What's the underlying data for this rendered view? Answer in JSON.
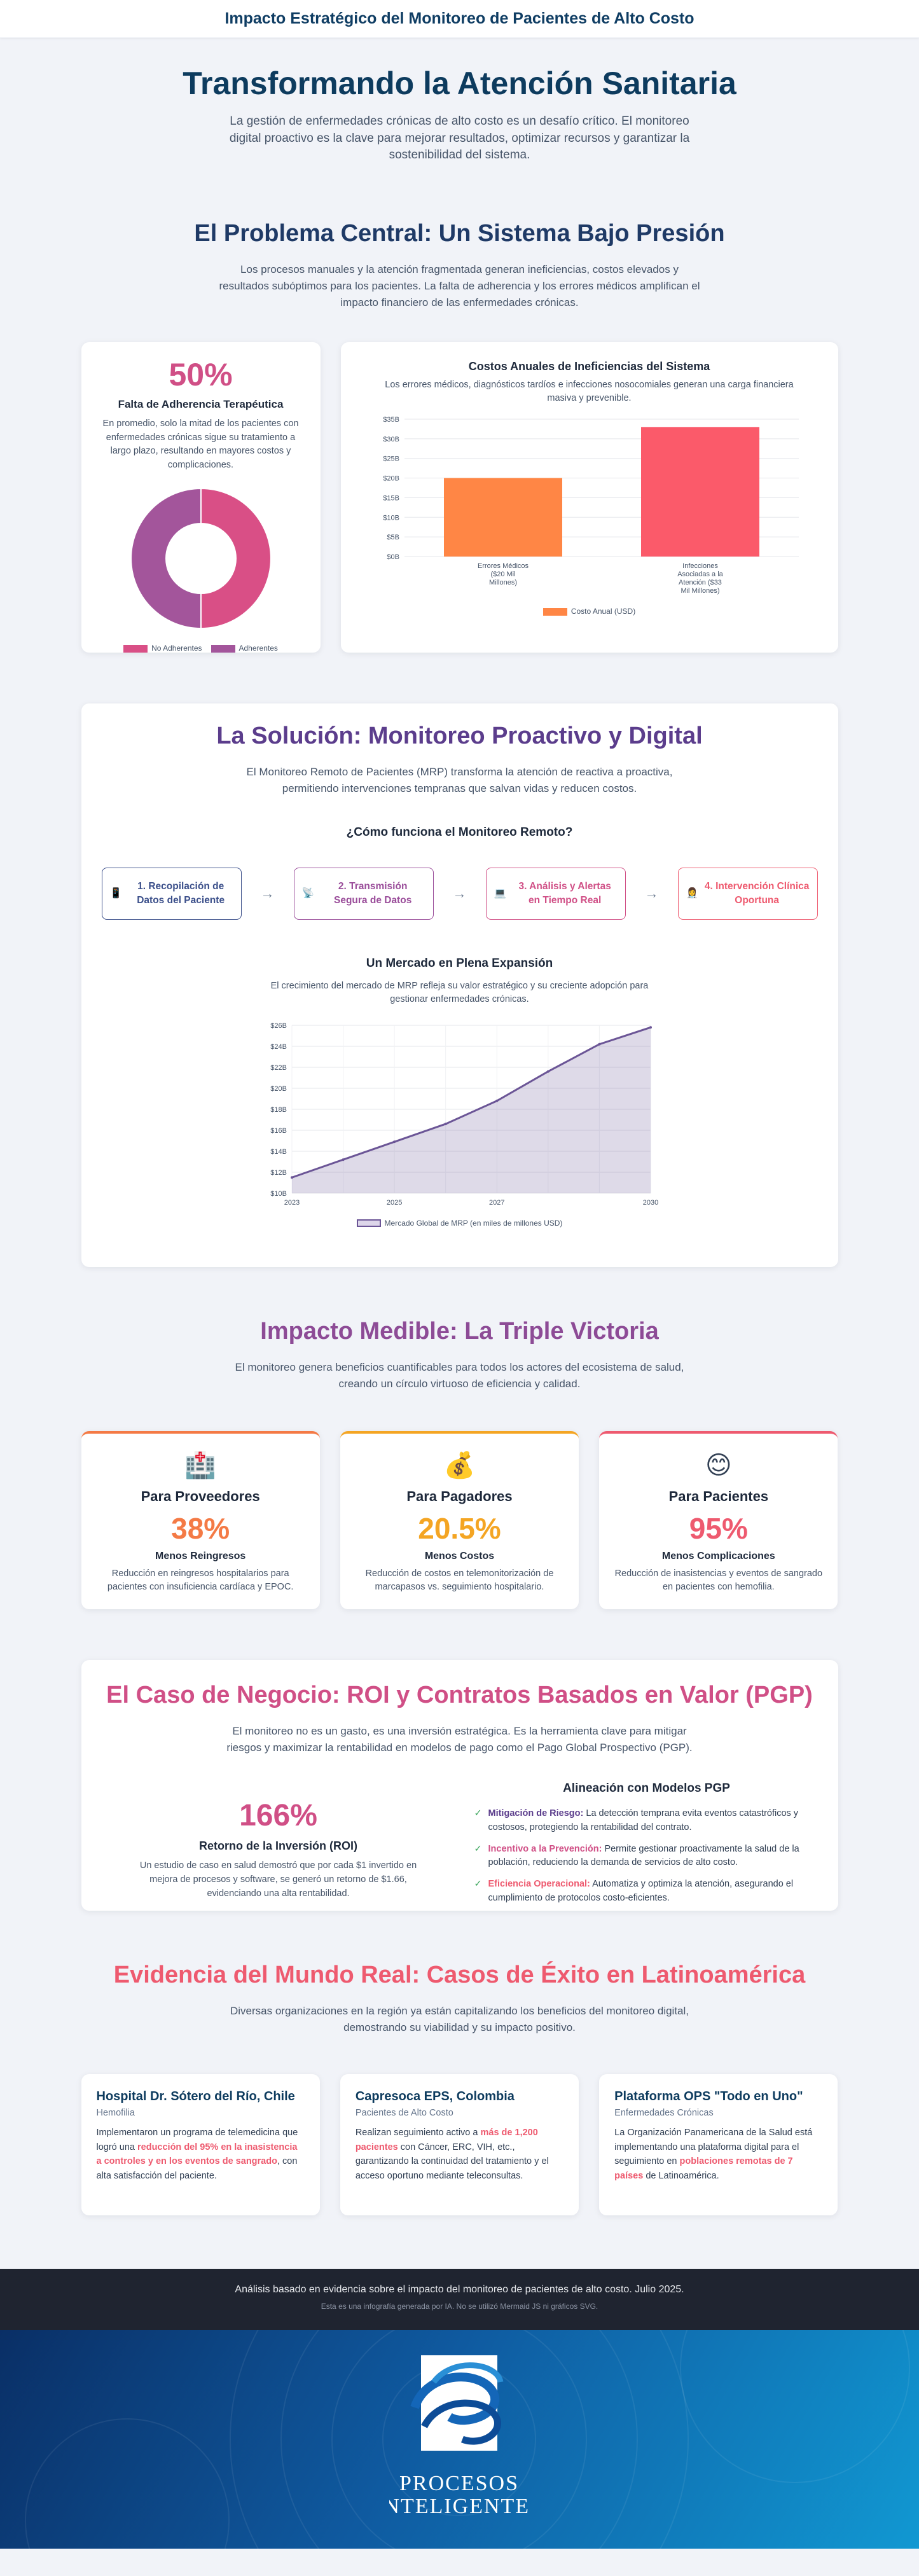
{
  "header": {
    "title": "Impacto Estratégico del Monitoreo de Pacientes de Alto Costo"
  },
  "hero": {
    "title": "Transformando la Atención Sanitaria",
    "subtitle": "La gestión de enfermedades crónicas de alto costo es un desafío crítico. El monitoreo digital proactivo es la clave para mejorar resultados, optimizar recursos y garantizar la sostenibilidad del sistema."
  },
  "problem": {
    "title": "El Problema Central: Un Sistema Bajo Presión",
    "desc": "Los procesos manuales y la atención fragmentada generan ineficiencias, costos elevados y resultados subóptimos para los pacientes. La falta de adherencia y los errores médicos amplifican el impacto financiero de las enfermedades crónicas.",
    "adherence": {
      "pct": "50%",
      "title": "Falta de Adherencia Terapéutica",
      "desc": "En promedio, solo la mitad de los pacientes con enfermedades crónicas sigue su tratamiento a largo plazo, resultando en mayores costos y complicaciones.",
      "legend": [
        "No Adherentes",
        "Adherentes"
      ],
      "colors": [
        "#d94f86",
        "#a3559b"
      ]
    },
    "costs": {
      "title": "Costos Anuales de Ineficiencias del Sistema",
      "desc": "Los errores médicos, diagnósticos tardíos e infecciones nosocomiales generan una carga financiera masiva y prevenible.",
      "legend": "Costo Anual (USD)"
    }
  },
  "chart_data": [
    {
      "type": "pie",
      "categories": [
        "No Adherentes",
        "Adherentes"
      ],
      "values": [
        50,
        50
      ],
      "legend": "bottom"
    },
    {
      "type": "bar",
      "categories": [
        [
          "Errores Médicos",
          "($20 Mil",
          "Millones)"
        ],
        [
          "Infecciones",
          "Asociadas a la",
          "Atención ($33",
          "Mil Millones)"
        ]
      ],
      "values": [
        20,
        33
      ],
      "series_name": "Costo Anual (USD)",
      "ylim": [
        0,
        35
      ],
      "yticks": [
        "$0B",
        "$5B",
        "$10B",
        "$15B",
        "$20B",
        "$25B",
        "$30B",
        "$35B"
      ],
      "colors": [
        "#ff8645",
        "#fb5a6a"
      ],
      "grid": true,
      "legend": "bottom"
    },
    {
      "type": "area",
      "title": "Un Mercado en Plena Expansión",
      "x": [
        2023,
        2024,
        2025,
        2026,
        2027,
        2028,
        2029,
        2030
      ],
      "values": [
        11.5,
        13.2,
        14.9,
        16.6,
        18.8,
        21.6,
        24.2,
        25.8
      ],
      "xticks": [
        "2023",
        "2025",
        "2027",
        "2030"
      ],
      "yticks": [
        "$10B",
        "$12B",
        "$14B",
        "$16B",
        "$18B",
        "$20B",
        "$22B",
        "$24B",
        "$26B"
      ],
      "ylim": [
        10,
        26
      ],
      "series_name": "Mercado Global de MRP (en miles de millones USD)",
      "grid": true,
      "legend": "bottom"
    }
  ],
  "solution": {
    "title": "La Solución: Monitoreo Proactivo y Digital",
    "desc": "El Monitoreo Remoto de Pacientes (MRP) transforma la atención de reactiva a proactiva, permitiendo intervenciones tempranas que salvan vidas y reducen costos.",
    "how_title": "¿Cómo funciona el Monitoreo Remoto?",
    "steps": [
      {
        "label": "1. Recopilación de Datos del Paciente",
        "icon": "📱",
        "color": "#3b4f8a"
      },
      {
        "label": "2. Transmisión Segura de Datos",
        "icon": "📡",
        "color": "#9a4d9a"
      },
      {
        "label": "3. Análisis y Alertas en Tiempo Real",
        "icon": "💻",
        "color": "#d04f86"
      },
      {
        "label": "4. Intervención Clínica Oportuna",
        "icon": "👩‍⚕️",
        "color": "#ee5a6f"
      }
    ],
    "market_title": "Un Mercado en Plena Expansión",
    "market_desc": "El crecimiento del mercado de MRP refleja su valor estratégico y su creciente adopción para gestionar enfermedades crónicas.",
    "market_legend": "Mercado Global de MRP (en miles de millones USD)"
  },
  "impact": {
    "title": "Impacto Medible: La Triple Victoria",
    "desc": "El monitoreo genera beneficios cuantificables para todos los actores del ecosistema de salud, creando un círculo virtuoso de eficiencia y calidad.",
    "cards": [
      {
        "icon": "🏥",
        "title": "Para Proveedores",
        "pct": "38%",
        "label": "Menos Reingresos",
        "desc": "Reducción en reingresos hospitalarios para pacientes con insuficiencia cardíaca y EPOC.",
        "color": "#f47a45"
      },
      {
        "icon": "💰",
        "title": "Para Pagadores",
        "pct": "20.5%",
        "label": "Menos Costos",
        "desc": "Reducción de costos en telemonitorización de marcapasos vs. seguimiento hospitalario.",
        "color": "#f4a523"
      },
      {
        "icon": "😊",
        "title": "Para Pacientes",
        "pct": "95%",
        "label": "Menos Complicaciones",
        "desc": "Reducción de inasistencias y eventos de sangrado en pacientes con hemofilia.",
        "color": "#ee5a6f"
      }
    ]
  },
  "business": {
    "title": "El Caso de Negocio: ROI y Contratos Basados en Valor (PGP)",
    "desc": "El monitoreo no es un gasto, es una inversión estratégica. Es la herramienta clave para mitigar riesgos y maximizar la rentabilidad en modelos de pago como el Pago Global Prospectivo (PGP).",
    "roi": {
      "pct": "166%",
      "title": "Retorno de la Inversión (ROI)",
      "desc": "Un estudio de caso en salud demostró que por cada $1 invertido en mejora de procesos y software, se generó un retorno de $1.66, evidenciando una alta rentabilidad."
    },
    "pgp": {
      "title": "Alineación con Modelos PGP",
      "items": [
        {
          "key": "Mitigación de Riesgo:",
          "text": "La detección temprana evita eventos catastróficos y costosos, protegiendo la rentabilidad del contrato.",
          "color": "#5b3d8c"
        },
        {
          "key": "Incentivo a la Prevención:",
          "text": "Permite gestionar proactivamente la salud de la población, reduciendo la demanda de servicios de alto costo.",
          "color": "#d04f86"
        },
        {
          "key": "Eficiencia Operacional:",
          "text": "Automatiza y optimiza la atención, asegurando el cumplimiento de protocolos costo-eficientes.",
          "color": "#ee5a6f"
        }
      ]
    }
  },
  "evidence": {
    "title": "Evidencia del Mundo Real: Casos de Éxito en Latinoamérica",
    "desc": "Diversas organizaciones en la región ya están capitalizando los beneficios del monitoreo digital, demostrando su viabilidad y su impacto positivo.",
    "cards": [
      {
        "title": "Hospital Dr. Sótero del Río, Chile",
        "sub": "Hemofilia",
        "p1": "Implementaron un programa de telemedicina que logró una ",
        "hl": "reducción del 95% en la inasistencia a controles y en los eventos de sangrado",
        "p2": ", con alta satisfacción del paciente."
      },
      {
        "title": "Capresoca EPS, Colombia",
        "sub": "Pacientes de Alto Costo",
        "p1": "Realizan seguimiento activo a ",
        "hl": "más de 1,200 pacientes",
        "p2": " con Cáncer, ERC, VIH, etc., garantizando la continuidad del tratamiento y el acceso oportuno mediante teleconsultas."
      },
      {
        "title": "Plataforma OPS \"Todo en Uno\"",
        "sub": "Enfermedades Crónicas",
        "p1": "La Organización Panamericana de la Salud está implementando una plataforma digital para el seguimiento en ",
        "hl": "poblaciones remotas de 7 países",
        "p2": " de Latinoamérica."
      }
    ]
  },
  "footer": {
    "line1": "Análisis basado en evidencia sobre el impacto del monitoreo de pacientes de alto costo. Julio 2025.",
    "line2": "Esta es una infografía generada por IA. No se utilizó Mermaid JS ni gráficos SVG."
  },
  "brand": {
    "line1": "PROCESOS",
    "line2": "INTELIGENTES"
  }
}
